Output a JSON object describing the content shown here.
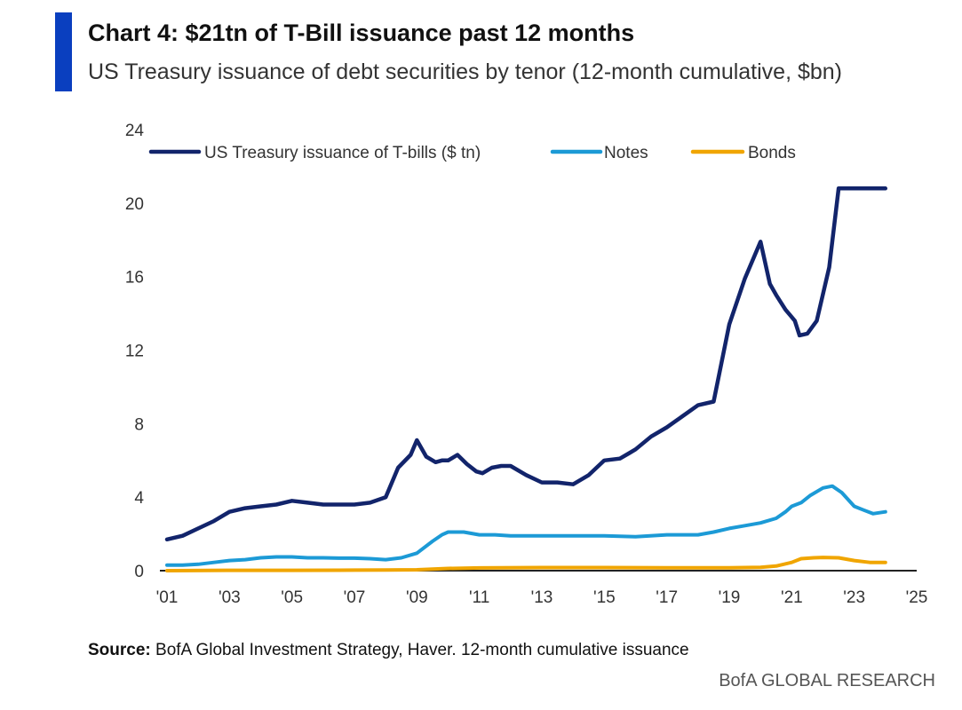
{
  "header": {
    "title": "Chart 4: $21tn of T-Bill issuance past 12 months",
    "subtitle": "US Treasury issuance of debt securities by tenor (12-month cumulative, $bn)",
    "accent_color": "#0a3fbf"
  },
  "footer": {
    "source_label": "Source:",
    "source_text": "BofA Global Investment Strategy, Haver. 12-month cumulative issuance",
    "brand": "BofA GLOBAL RESEARCH"
  },
  "chart_data": {
    "type": "line",
    "title": "Chart 4: $21tn of T-Bill issuance past 12 months",
    "subtitle": "US Treasury issuance of debt securities by tenor (12-month cumulative, $bn)",
    "xlabel": "",
    "ylabel": "",
    "xlim": [
      2001,
      2025
    ],
    "ylim": [
      0,
      24
    ],
    "x_ticks": [
      2001,
      2003,
      2005,
      2007,
      2009,
      2011,
      2013,
      2015,
      2017,
      2019,
      2021,
      2023,
      2025
    ],
    "x_tick_labels": [
      "'01",
      "'03",
      "'05",
      "'07",
      "'09",
      "'11",
      "'13",
      "'15",
      "'17",
      "'19",
      "'21",
      "'23",
      "'25"
    ],
    "y_ticks": [
      0,
      4,
      8,
      12,
      16,
      20,
      24
    ],
    "y_tick_labels": [
      "0",
      "4",
      "8",
      "12",
      "16",
      "20",
      "24"
    ],
    "grid": false,
    "legend_position": "top",
    "series": [
      {
        "name": "US Treasury issuance of T-bills ($ tn)",
        "color": "#12246b",
        "x": [
          2001.0,
          2001.5,
          2002.0,
          2002.5,
          2003.0,
          2003.5,
          2004.0,
          2004.5,
          2005.0,
          2005.5,
          2006.0,
          2006.5,
          2007.0,
          2007.5,
          2008.0,
          2008.4,
          2008.8,
          2009.0,
          2009.3,
          2009.6,
          2009.8,
          2010.0,
          2010.3,
          2010.6,
          2010.9,
          2011.1,
          2011.4,
          2011.7,
          2012.0,
          2012.5,
          2013.0,
          2013.5,
          2014.0,
          2014.5,
          2015.0,
          2015.5,
          2015.8,
          2016.0,
          2016.5,
          2017.0,
          2017.5,
          2018.0,
          2018.5,
          2019.0,
          2019.5,
          2020.0,
          2020.3,
          2020.5,
          2020.8,
          2021.1,
          2021.25,
          2021.5,
          2021.8,
          2022.2,
          2022.5,
          2022.8,
          2023.0,
          2023.3,
          2023.6,
          2024.0
        ],
        "values": [
          1.7,
          1.9,
          2.3,
          2.7,
          3.2,
          3.4,
          3.5,
          3.6,
          3.8,
          3.7,
          3.6,
          3.6,
          3.6,
          3.7,
          4.0,
          5.6,
          6.3,
          7.1,
          6.2,
          5.9,
          6.0,
          6.0,
          6.3,
          5.8,
          5.4,
          5.3,
          5.6,
          5.7,
          5.7,
          5.2,
          4.8,
          4.8,
          4.7,
          5.2,
          6.0,
          6.1,
          6.4,
          6.6,
          7.3,
          7.8,
          8.4,
          9.0,
          9.2,
          13.4,
          15.9,
          17.9,
          15.6,
          15.0,
          14.2,
          13.6,
          12.8,
          12.9,
          13.6,
          16.5,
          20.8,
          20.8,
          20.8,
          20.8,
          20.8,
          20.8
        ]
      },
      {
        "name": "Notes",
        "color": "#1c9ad6",
        "x": [
          2001.0,
          2001.5,
          2002.0,
          2002.5,
          2003.0,
          2003.5,
          2004.0,
          2004.5,
          2005.0,
          2005.5,
          2006.0,
          2006.5,
          2007.0,
          2007.5,
          2008.0,
          2008.5,
          2009.0,
          2009.5,
          2009.8,
          2010.0,
          2010.5,
          2011.0,
          2011.5,
          2012.0,
          2013.0,
          2014.0,
          2015.0,
          2016.0,
          2017.0,
          2018.0,
          2018.5,
          2019.0,
          2019.5,
          2020.0,
          2020.5,
          2020.8,
          2021.0,
          2021.3,
          2021.6,
          2022.0,
          2022.3,
          2022.6,
          2023.0,
          2023.3,
          2023.6,
          2024.0
        ],
        "values": [
          0.3,
          0.3,
          0.35,
          0.45,
          0.55,
          0.6,
          0.7,
          0.75,
          0.75,
          0.7,
          0.7,
          0.68,
          0.68,
          0.65,
          0.6,
          0.7,
          0.95,
          1.6,
          1.95,
          2.1,
          2.1,
          1.95,
          1.95,
          1.9,
          1.9,
          1.9,
          1.9,
          1.85,
          1.95,
          1.95,
          2.1,
          2.3,
          2.45,
          2.6,
          2.85,
          3.2,
          3.5,
          3.7,
          4.1,
          4.5,
          4.6,
          4.25,
          3.5,
          3.3,
          3.1,
          3.2
        ]
      },
      {
        "name": "Bonds",
        "color": "#f0a500",
        "x": [
          2001.0,
          2003.0,
          2005.0,
          2007.0,
          2008.0,
          2009.0,
          2010.0,
          2011.0,
          2013.0,
          2015.0,
          2017.0,
          2019.0,
          2020.0,
          2020.5,
          2021.0,
          2021.3,
          2021.7,
          2022.0,
          2022.5,
          2023.0,
          2023.5,
          2024.0
        ],
        "values": [
          0.0,
          0.02,
          0.02,
          0.03,
          0.04,
          0.05,
          0.12,
          0.15,
          0.17,
          0.17,
          0.16,
          0.16,
          0.18,
          0.25,
          0.45,
          0.65,
          0.7,
          0.72,
          0.7,
          0.55,
          0.45,
          0.45
        ]
      }
    ]
  }
}
